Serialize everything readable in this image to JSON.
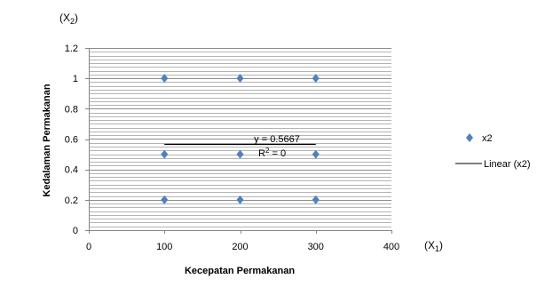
{
  "chart_data": {
    "type": "scatter",
    "xlabel": "Kecepatan Permakanan",
    "ylabel": "Kedalaman Permakanan",
    "x_var": {
      "base": "(X",
      "sub": "1",
      "close": ")"
    },
    "y_var": {
      "base": "(X",
      "sub": "2",
      "close": ")"
    },
    "xlim": [
      0,
      400
    ],
    "ylim": [
      0,
      1.2
    ],
    "x_ticks": [
      "0",
      "100",
      "200",
      "300",
      "400"
    ],
    "y_ticks": [
      "0",
      "0.2",
      "0.4",
      "0.6",
      "0.8",
      "1",
      "1.2"
    ],
    "series": [
      {
        "name": "x2",
        "color": "#4F81BD",
        "marker": "diamond",
        "points": [
          {
            "x": 100,
            "y": 1
          },
          {
            "x": 200,
            "y": 1
          },
          {
            "x": 300,
            "y": 1
          },
          {
            "x": 100,
            "y": 0.5
          },
          {
            "x": 200,
            "y": 0.5
          },
          {
            "x": 300,
            "y": 0.5
          },
          {
            "x": 100,
            "y": 0.2
          },
          {
            "x": 200,
            "y": 0.2
          },
          {
            "x": 300,
            "y": 0.2
          }
        ]
      }
    ],
    "trendline": {
      "name": "Linear (x2)",
      "type": "linear",
      "x_range": [
        100,
        300
      ],
      "value": 0.5667,
      "color": "#000000",
      "equation": "y = 0.5667",
      "r2": {
        "base": "R",
        "sup": "2",
        "rest": " = 0"
      }
    },
    "grid": true,
    "legend": "right"
  }
}
